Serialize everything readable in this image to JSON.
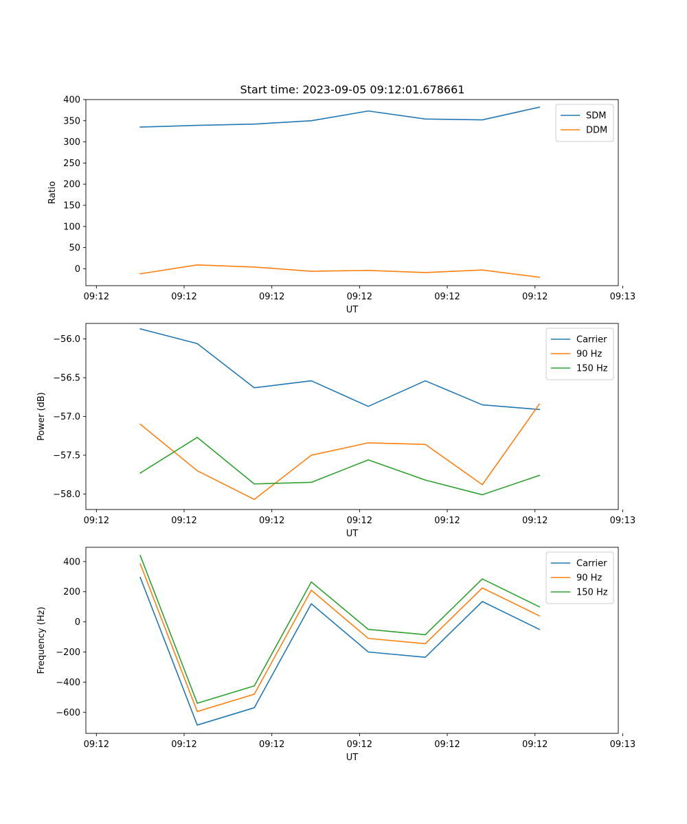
{
  "figure": {
    "title": "Start time: 2023-09-05 09:12:01.678661"
  },
  "chart_data": [
    {
      "type": "line",
      "xlabel": "UT",
      "ylabel": "Ratio",
      "x_range": [
        -0.12,
        5.95
      ],
      "ylim": [
        -40,
        400
      ],
      "yticks": [
        0,
        50,
        100,
        150,
        200,
        250,
        300,
        350,
        400
      ],
      "ytick_labels": [
        "0",
        "50",
        "100",
        "150",
        "200",
        "250",
        "300",
        "350",
        "400"
      ],
      "xticks": [
        0,
        1,
        2,
        3,
        4,
        5,
        6
      ],
      "xtick_labels": [
        "09:12",
        "09:12",
        "09:12",
        "09:12",
        "09:12",
        "09:12",
        "09:13"
      ],
      "x": [
        0.5,
        1.15,
        1.8,
        2.45,
        3.1,
        3.75,
        4.4,
        5.05
      ],
      "legend_position": "top-right",
      "series": [
        {
          "name": "SDM",
          "color": "#1f77b4",
          "values": [
            335,
            339,
            342,
            350,
            373,
            354,
            352,
            382
          ]
        },
        {
          "name": "DDM",
          "color": "#ff7f0e",
          "values": [
            -12,
            9,
            4,
            -6,
            -4,
            -9,
            -3,
            -20
          ]
        }
      ]
    },
    {
      "type": "line",
      "xlabel": "UT",
      "ylabel": "Power (dB)",
      "x_range": [
        -0.12,
        5.95
      ],
      "ylim": [
        -58.2,
        -55.8
      ],
      "yticks": [
        -58.0,
        -57.5,
        -57.0,
        -56.5,
        -56.0
      ],
      "ytick_labels": [
        "−58.0",
        "−57.5",
        "−57.0",
        "−56.5",
        "−56.0"
      ],
      "xticks": [
        0,
        1,
        2,
        3,
        4,
        5,
        6
      ],
      "xtick_labels": [
        "09:12",
        "09:12",
        "09:12",
        "09:12",
        "09:12",
        "09:12",
        "09:13"
      ],
      "x": [
        0.5,
        1.15,
        1.8,
        2.45,
        3.1,
        3.75,
        4.4,
        5.05
      ],
      "legend_position": "top-right",
      "series": [
        {
          "name": "Carrier",
          "color": "#1f77b4",
          "values": [
            -55.87,
            -56.06,
            -56.63,
            -56.54,
            -56.87,
            -56.54,
            -56.85,
            -56.91
          ]
        },
        {
          "name": "90 Hz",
          "color": "#ff7f0e",
          "values": [
            -57.1,
            -57.7,
            -58.07,
            -57.5,
            -57.34,
            -57.36,
            -57.88,
            -56.84
          ]
        },
        {
          "name": "150 Hz",
          "color": "#2ca02c",
          "values": [
            -57.73,
            -57.27,
            -57.87,
            -57.85,
            -57.56,
            -57.82,
            -58.01,
            -57.76
          ]
        }
      ]
    },
    {
      "type": "line",
      "xlabel": "UT",
      "ylabel": "Frequency (Hz)",
      "x_range": [
        -0.12,
        5.95
      ],
      "ylim": [
        -740,
        495
      ],
      "yticks": [
        -600,
        -400,
        -200,
        0,
        200,
        400
      ],
      "ytick_labels": [
        "−600",
        "−400",
        "−200",
        "0",
        "200",
        "400"
      ],
      "xticks": [
        0,
        1,
        2,
        3,
        4,
        5,
        6
      ],
      "xtick_labels": [
        "09:12",
        "09:12",
        "09:12",
        "09:12",
        "09:12",
        "09:12",
        "09:13"
      ],
      "x": [
        0.5,
        1.15,
        1.8,
        2.45,
        3.1,
        3.75,
        4.4,
        5.05
      ],
      "legend_position": "top-right",
      "series": [
        {
          "name": "Carrier",
          "color": "#1f77b4",
          "values": [
            295,
            -685,
            -570,
            120,
            -200,
            -235,
            135,
            -50
          ]
        },
        {
          "name": "90 Hz",
          "color": "#ff7f0e",
          "values": [
            385,
            -595,
            -480,
            210,
            -110,
            -145,
            225,
            40
          ]
        },
        {
          "name": "150 Hz",
          "color": "#2ca02c",
          "values": [
            440,
            -540,
            -425,
            265,
            -50,
            -85,
            285,
            100
          ]
        }
      ]
    }
  ]
}
